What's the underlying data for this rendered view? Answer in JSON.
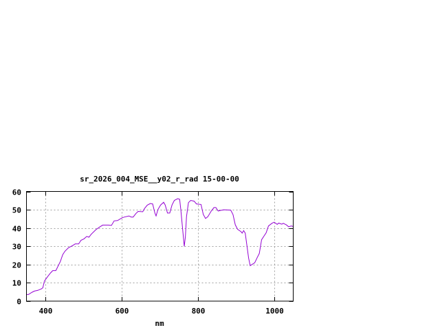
{
  "chart_data": {
    "type": "line",
    "title": "sr_2026_004_MSE__y02_r_rad 15-00-00",
    "xlabel": "nm",
    "ylabel": "",
    "xlim": [
      350,
      1050
    ],
    "ylim": [
      0,
      60
    ],
    "xticks": [
      400,
      600,
      800,
      1000
    ],
    "yticks": [
      0,
      10,
      20,
      30,
      40,
      50,
      60
    ],
    "grid": true,
    "line_color": "#9400d3",
    "series": [
      {
        "x": [
          350,
          355,
          365,
          371,
          380,
          389,
          393,
          397,
          406,
          413,
          419,
          427,
          433,
          439,
          445,
          451,
          460,
          471,
          478,
          487,
          493,
          501,
          508,
          514,
          520,
          532,
          541,
          550,
          565,
          573,
          580,
          589,
          601,
          607,
          619,
          625,
          630,
          637,
          643,
          655,
          660,
          667,
          675,
          681,
          687,
          690,
          695,
          702,
          710,
          714,
          720,
          726,
          732,
          738,
          747,
          752,
          755,
          760,
          764,
          767,
          770,
          775,
          781,
          790,
          796,
          808,
          814,
          820,
          826,
          835,
          842,
          847,
          853,
          859,
          868,
          886,
          892,
          898,
          904,
          913,
          916,
          920,
          924,
          928,
          933,
          937,
          949,
          955,
          961,
          967,
          973,
          979,
          985,
          994,
          1000,
          1008,
          1012,
          1020,
          1024,
          1032,
          1038,
          1045,
          1050
        ],
        "y": [
          3.6,
          3.6,
          4.9,
          5.5,
          5.9,
          6.7,
          7.3,
          11,
          13.5,
          15.4,
          16.7,
          16.7,
          19.2,
          21.7,
          25.4,
          27.3,
          29.2,
          30.4,
          31.3,
          31.3,
          33.3,
          34.1,
          35.4,
          35,
          36.6,
          39.1,
          40.4,
          41.6,
          41.6,
          41.4,
          43.9,
          44.1,
          45.6,
          46,
          46.6,
          46,
          46,
          47.9,
          49.1,
          48.9,
          50.7,
          52.5,
          53.4,
          53.2,
          48.2,
          46.6,
          50.1,
          52.6,
          54.1,
          52.6,
          48.2,
          48.2,
          52.6,
          55.1,
          56.1,
          55.7,
          50.1,
          38.8,
          30,
          35,
          46.3,
          53.9,
          55.1,
          54.7,
          53.2,
          52.9,
          47.4,
          45.2,
          46.2,
          49.3,
          51.2,
          51.2,
          49.3,
          49.6,
          50,
          49.8,
          47.4,
          41.8,
          39.3,
          38,
          37.2,
          38.6,
          37.2,
          31.1,
          23.6,
          19.4,
          21,
          23.6,
          26.1,
          33.6,
          35.5,
          37.4,
          41.1,
          42.6,
          43.2,
          42,
          42.7,
          42.1,
          42.6,
          41.7,
          40.7,
          41.1,
          40.8
        ]
      }
    ]
  }
}
